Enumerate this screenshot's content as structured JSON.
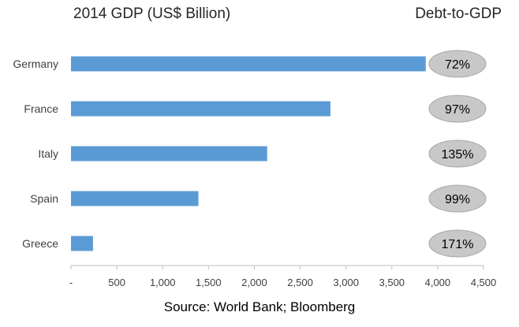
{
  "chart_data": {
    "type": "bar",
    "orientation": "horizontal",
    "title": "2014 GDP (US$ Billion)",
    "right_header": "Debt-to-GDP",
    "categories": [
      "Germany",
      "France",
      "Italy",
      "Spain",
      "Greece"
    ],
    "values": [
      3870,
      2830,
      2140,
      1390,
      240
    ],
    "debt_to_gdp_labels": [
      "72%",
      "97%",
      "135%",
      "99%",
      "171%"
    ],
    "xlim": [
      0,
      4500
    ],
    "x_ticks": [
      0,
      500,
      1000,
      1500,
      2000,
      2500,
      3000,
      3500,
      4000,
      4500
    ],
    "x_tick_labels": [
      "-",
      "500",
      "1,000",
      "1,500",
      "2,000",
      "2,500",
      "3,000",
      "3,500",
      "4,000",
      "4,500"
    ],
    "grid": false,
    "legend": "none",
    "source": "Source: World Bank; Bloomberg",
    "colors": {
      "bar": "#5b9bd5",
      "badge_fill": "#c8c8c8",
      "badge_stroke": "#a6a6a6",
      "axis": "#bfbfbf",
      "text": "#404040",
      "title_text": "#262626"
    }
  }
}
